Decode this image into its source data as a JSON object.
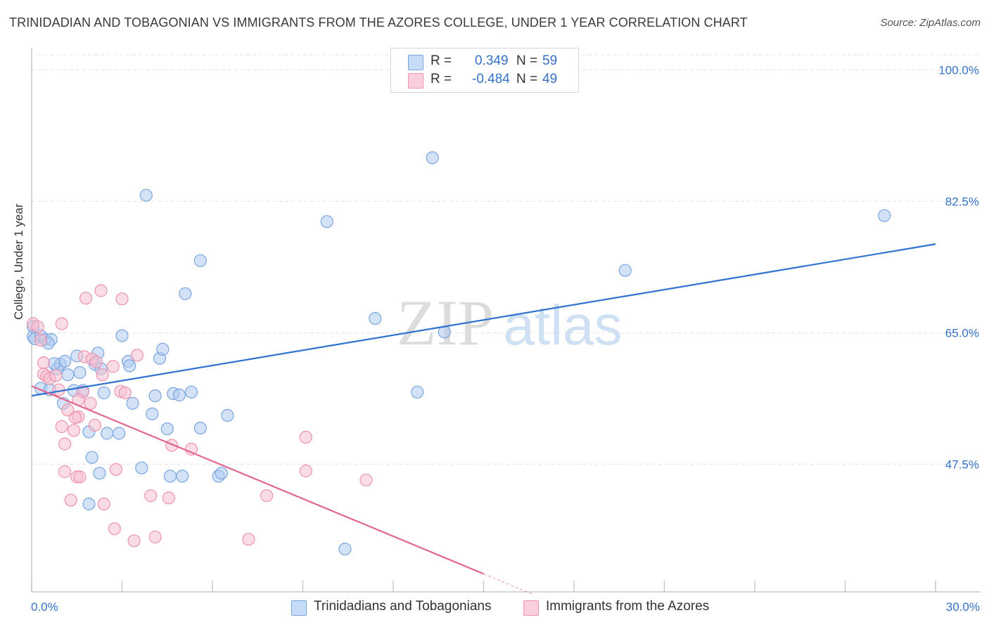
{
  "title": "TRINIDADIAN AND TOBAGONIAN VS IMMIGRANTS FROM THE AZORES COLLEGE, UNDER 1 YEAR CORRELATION CHART",
  "source": "Source: ZipAtlas.com",
  "colors": {
    "blue_fill": "#aecbf0",
    "blue_stroke": "#7aa6e0",
    "blue_line": "#2f72d0",
    "pink_fill": "#f6bfd0",
    "pink_stroke": "#ee92b0",
    "pink_line": "#e2658f",
    "axis_text": "#3571c7",
    "grid": "#e3e3e3"
  },
  "legend": {
    "rows": [
      {
        "r_label": "R =",
        "r_value": "0.349",
        "n_label": "N =",
        "n_value": "59"
      },
      {
        "r_label": "R =",
        "r_value": "-0.484",
        "n_label": "N =",
        "n_value": "49"
      }
    ]
  },
  "watermark": {
    "left": "ZIP",
    "right": "atlas"
  },
  "chart_data": {
    "type": "scatter",
    "title": "TRINIDADIAN AND TOBAGONIAN VS IMMIGRANTS FROM THE AZORES COLLEGE, UNDER 1 YEAR CORRELATION CHART",
    "xlabel": "",
    "ylabel": "College, Under 1 year",
    "xlim": [
      0,
      30
    ],
    "ylim": [
      30.5,
      102
    ],
    "x_tick_labels": [
      "0.0%",
      "30.0%"
    ],
    "y_ticks": [
      47.5,
      65.0,
      82.5,
      100.0
    ],
    "y_tick_labels": [
      "47.5%",
      "65.0%",
      "82.5%",
      "100.0%"
    ],
    "grid": true,
    "series": [
      {
        "name": "Trinidadians and Tobagonians",
        "color": "blue",
        "points": [
          [
            0.05,
            65.8
          ],
          [
            0.05,
            64.5
          ],
          [
            0.1,
            64.2
          ],
          [
            0.3,
            64.6
          ],
          [
            0.45,
            64.1
          ],
          [
            0.65,
            64.1
          ],
          [
            0.55,
            63.6
          ],
          [
            0.3,
            57.6
          ],
          [
            0.6,
            57.4
          ],
          [
            0.85,
            60.2
          ],
          [
            0.95,
            60.8
          ],
          [
            1.1,
            61.2
          ],
          [
            1.2,
            59.4
          ],
          [
            1.4,
            57.3
          ],
          [
            1.5,
            61.9
          ],
          [
            1.6,
            59.7
          ],
          [
            1.7,
            57.3
          ],
          [
            1.9,
            51.8
          ],
          [
            2.1,
            60.8
          ],
          [
            2.2,
            62.3
          ],
          [
            2.25,
            46.3
          ],
          [
            2.3,
            60.2
          ],
          [
            2.4,
            57.0
          ],
          [
            2.5,
            51.6
          ],
          [
            2.9,
            51.6
          ],
          [
            3.0,
            64.6
          ],
          [
            3.2,
            61.2
          ],
          [
            3.25,
            60.6
          ],
          [
            3.35,
            55.6
          ],
          [
            3.65,
            47.0
          ],
          [
            3.8,
            83.3
          ],
          [
            4.0,
            54.2
          ],
          [
            4.1,
            56.6
          ],
          [
            4.25,
            61.6
          ],
          [
            4.35,
            62.8
          ],
          [
            4.5,
            52.2
          ],
          [
            4.6,
            45.9
          ],
          [
            4.7,
            56.9
          ],
          [
            4.9,
            56.7
          ],
          [
            5.0,
            45.9
          ],
          [
            5.1,
            70.2
          ],
          [
            5.3,
            57.1
          ],
          [
            5.6,
            52.3
          ],
          [
            5.6,
            74.6
          ],
          [
            6.2,
            45.9
          ],
          [
            6.3,
            46.3
          ],
          [
            6.5,
            54.0
          ],
          [
            9.8,
            79.8
          ],
          [
            11.4,
            66.9
          ],
          [
            10.4,
            36.2
          ],
          [
            12.8,
            57.1
          ],
          [
            13.3,
            88.3
          ],
          [
            13.7,
            65.1
          ],
          [
            19.7,
            73.3
          ],
          [
            28.3,
            80.6
          ],
          [
            1.05,
            55.6
          ],
          [
            0.75,
            60.9
          ],
          [
            1.9,
            42.2
          ],
          [
            2.0,
            48.4
          ]
        ]
      },
      {
        "name": "Immigrants from the Azores",
        "color": "pink",
        "points": [
          [
            0.05,
            66.2
          ],
          [
            0.2,
            65.8
          ],
          [
            0.3,
            64.0
          ],
          [
            0.4,
            61.0
          ],
          [
            0.4,
            59.5
          ],
          [
            0.5,
            59.2
          ],
          [
            0.6,
            58.9
          ],
          [
            0.8,
            59.3
          ],
          [
            0.9,
            57.4
          ],
          [
            1.0,
            66.2
          ],
          [
            1.0,
            52.5
          ],
          [
            1.1,
            50.2
          ],
          [
            1.1,
            46.5
          ],
          [
            1.2,
            54.7
          ],
          [
            1.3,
            42.7
          ],
          [
            1.4,
            52.0
          ],
          [
            1.5,
            45.8
          ],
          [
            1.55,
            53.8
          ],
          [
            1.6,
            45.8
          ],
          [
            1.7,
            57.1
          ],
          [
            1.75,
            61.8
          ],
          [
            1.8,
            69.6
          ],
          [
            1.95,
            55.6
          ],
          [
            2.0,
            61.5
          ],
          [
            2.1,
            52.7
          ],
          [
            2.15,
            61.1
          ],
          [
            2.3,
            70.6
          ],
          [
            2.35,
            59.4
          ],
          [
            2.4,
            42.2
          ],
          [
            2.7,
            60.5
          ],
          [
            2.75,
            38.9
          ],
          [
            2.8,
            46.8
          ],
          [
            2.95,
            57.2
          ],
          [
            3.0,
            69.5
          ],
          [
            3.1,
            57.0
          ],
          [
            3.4,
            37.3
          ],
          [
            3.5,
            62.0
          ],
          [
            3.95,
            43.3
          ],
          [
            4.1,
            37.8
          ],
          [
            4.55,
            43.0
          ],
          [
            4.65,
            50.0
          ],
          [
            5.3,
            49.5
          ],
          [
            7.2,
            37.5
          ],
          [
            7.8,
            43.3
          ],
          [
            9.1,
            51.1
          ],
          [
            9.1,
            46.6
          ],
          [
            11.1,
            45.4
          ],
          [
            1.45,
            53.7
          ],
          [
            1.55,
            56.1
          ]
        ]
      }
    ],
    "trend_lines": [
      {
        "series": "Trinidadians and Tobagonians",
        "x": [
          0,
          30
        ],
        "y": [
          56.6,
          76.8
        ]
      },
      {
        "series": "Immigrants from the Azores",
        "x": [
          0,
          15.0
        ],
        "y": [
          57.9,
          32.9
        ],
        "solid_until_x": [
          0,
          15.0
        ],
        "dashed_x": [
          15.0,
          16.6
        ]
      }
    ]
  },
  "bottom_legend": {
    "items": [
      {
        "label": "Trinidadians and Tobagonians"
      },
      {
        "label": "Immigrants from the Azores"
      }
    ]
  }
}
